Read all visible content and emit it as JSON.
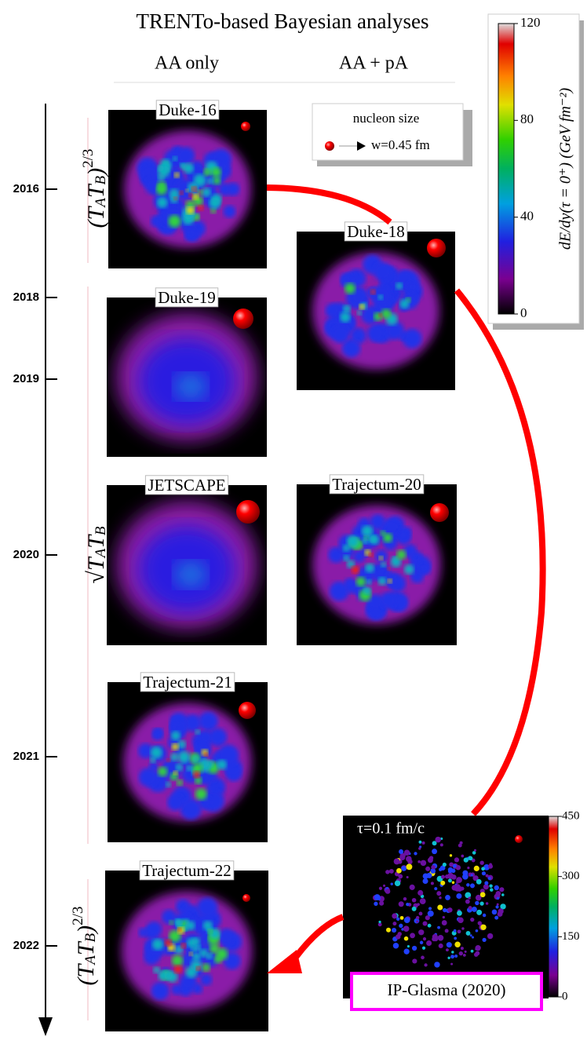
{
  "header": {
    "title": "TRENTo-based Bayesian analyses",
    "columns": [
      "AA only",
      "AA + pA"
    ]
  },
  "timeline": {
    "years": [
      2016,
      2018,
      2019,
      2020,
      2021,
      2022
    ]
  },
  "scalings": [
    {
      "parts": [
        {
          "text": "(T"
        },
        {
          "text": "A",
          "style": "sub"
        },
        {
          "text": "T"
        },
        {
          "text": "B",
          "style": "sub"
        },
        {
          "text": ")"
        },
        {
          "text": "2/3",
          "style": "sup"
        }
      ]
    },
    {
      "parts": [
        {
          "text": "√"
        },
        {
          "text": "T"
        },
        {
          "text": "A",
          "style": "sub"
        },
        {
          "text": "T"
        },
        {
          "text": "B",
          "style": "sub"
        }
      ]
    },
    {
      "parts": [
        {
          "text": "(T"
        },
        {
          "text": "A",
          "style": "sub"
        },
        {
          "text": "T"
        },
        {
          "text": "B",
          "style": "sub"
        },
        {
          "text": ")"
        },
        {
          "text": "2/3",
          "style": "sup"
        }
      ]
    }
  ],
  "panels": [
    "Duke-16",
    "Duke-18",
    "Duke-19",
    "JETSCAPE",
    "Trajectum-20",
    "Trajectum-21",
    "Trajectum-22"
  ],
  "legend": {
    "title": "nucleon size",
    "entry": "w=0.45 fm"
  },
  "colorbar": {
    "label": "dE/dy(τ = 0⁺) (GeV fm⁻²)",
    "ticks": [
      0,
      40,
      80,
      120
    ]
  },
  "ip_glasma": {
    "time": "τ=0.1 fm/c",
    "label": "IP-Glasma (2020)",
    "colorbar_ticks": [
      0,
      150,
      300,
      450
    ]
  }
}
